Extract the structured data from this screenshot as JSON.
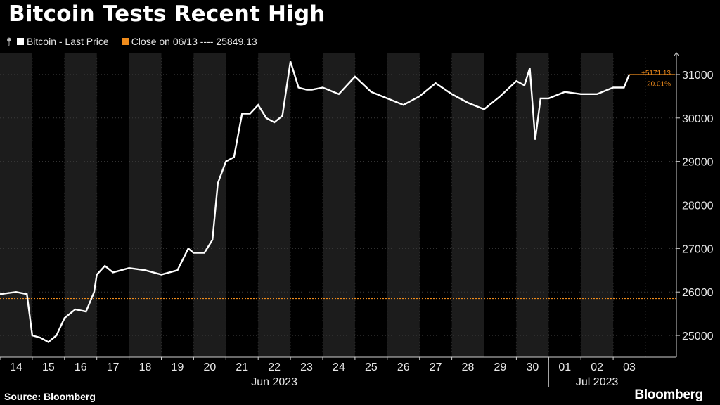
{
  "title": "Bitcoin Tests Recent High",
  "legend": {
    "series_label": "Bitcoin - Last Price",
    "reference_label": "Close on 06/13 ---- 25849.13"
  },
  "colors": {
    "background": "#000000",
    "band": "#1c1c1c",
    "line": "#ffffff",
    "reference": "#f08c1c",
    "axis_text": "#e8e8e8"
  },
  "source": "Source: Bloomberg",
  "brand": "Bloomberg",
  "chart_data": {
    "type": "line",
    "title": "Bitcoin Tests Recent High",
    "series": [
      {
        "name": "Bitcoin - Last Price",
        "x": [
          "06/14 00:00",
          "06/14 12:00",
          "06/14 20:00",
          "06/15 00:00",
          "06/15 06:00",
          "06/15 12:00",
          "06/15 18:00",
          "06/16 00:00",
          "06/16 08:00",
          "06/16 16:00",
          "06/16 22:00",
          "06/17 00:00",
          "06/17 06:00",
          "06/17 12:00",
          "06/18 00:00",
          "06/18 12:00",
          "06/19 00:00",
          "06/19 12:00",
          "06/19 20:00",
          "06/20 00:00",
          "06/20 08:00",
          "06/20 14:00",
          "06/20 18:00",
          "06/21 00:00",
          "06/21 06:00",
          "06/21 12:00",
          "06/21 18:00",
          "06/22 00:00",
          "06/22 06:00",
          "06/22 12:00",
          "06/22 18:00",
          "06/23 00:00",
          "06/23 06:00",
          "06/23 12:00",
          "06/23 16:00",
          "06/24 00:00",
          "06/24 12:00",
          "06/25 00:00",
          "06/25 12:00",
          "06/26 00:00",
          "06/26 12:00",
          "06/27 00:00",
          "06/27 12:00",
          "06/28 00:00",
          "06/28 12:00",
          "06/29 00:00",
          "06/29 12:00",
          "06/30 00:00",
          "06/30 06:00",
          "06/30 10:00",
          "06/30 14:00",
          "06/30 18:00",
          "07/01 00:00",
          "07/01 12:00",
          "07/02 00:00",
          "07/02 12:00",
          "07/03 00:00",
          "07/03 08:00",
          "07/03 12:00"
        ],
        "y": [
          25950,
          26000,
          25950,
          25000,
          24950,
          24850,
          25000,
          25400,
          25600,
          25550,
          26000,
          26400,
          26600,
          26450,
          26550,
          26500,
          26400,
          26500,
          27000,
          26900,
          26900,
          27200,
          28500,
          29000,
          29100,
          30100,
          30100,
          30300,
          30000,
          29900,
          30050,
          31300,
          30700,
          30650,
          30650,
          30700,
          30550,
          30950,
          30600,
          30450,
          30300,
          30500,
          30800,
          30550,
          30350,
          30200,
          30500,
          30850,
          30750,
          31150,
          29500,
          30450,
          30450,
          30600,
          30550,
          30550,
          30700,
          30700,
          31000
        ]
      }
    ],
    "reference_line": {
      "label": "Close on 06/13",
      "value": 25849.13
    },
    "last_value_annotation": {
      "change": "+5171.13",
      "percent": "20.01%"
    },
    "x_tick_labels": [
      "14",
      "15",
      "16",
      "17",
      "18",
      "19",
      "20",
      "21",
      "22",
      "23",
      "24",
      "25",
      "26",
      "27",
      "28",
      "29",
      "30",
      "01",
      "02",
      "03"
    ],
    "x_group_labels": [
      "Jun 2023",
      "Jul 2023"
    ],
    "y_ticks": [
      25000,
      26000,
      27000,
      28000,
      29000,
      30000,
      31000
    ],
    "ylim": [
      24500,
      31500
    ],
    "y_axis_side": "right",
    "alternating_day_bands": true
  }
}
